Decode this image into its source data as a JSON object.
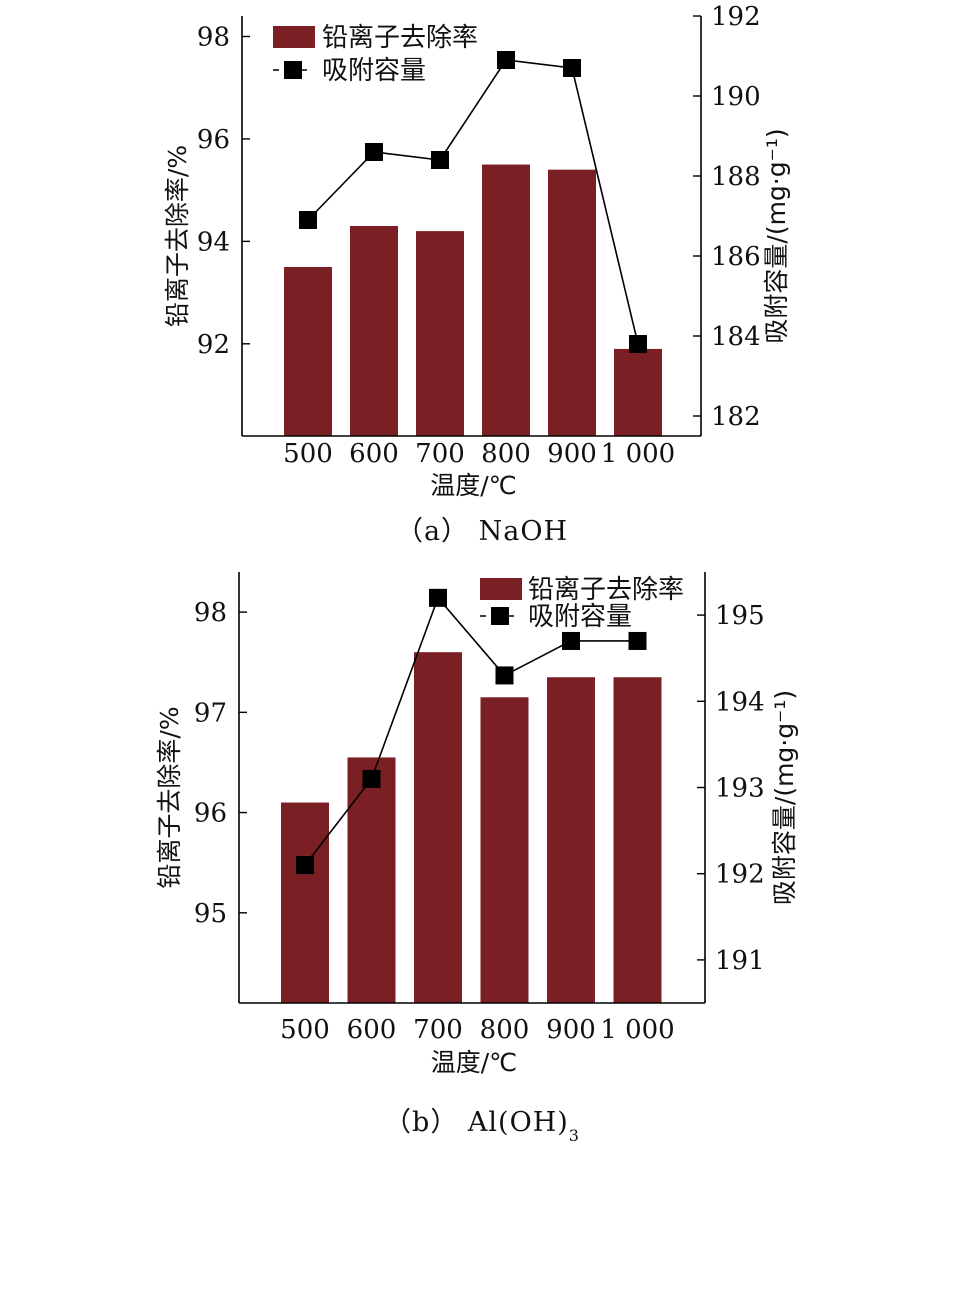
{
  "chart_data": [
    {
      "type": "bar+line",
      "caption": "（a） NaOH",
      "categories": [
        "500",
        "600",
        "700",
        "800",
        "900",
        "1 000"
      ],
      "xlabel": "温度/℃",
      "ylabel": "铅离子去除率/%",
      "ylabel_right": "吸附容量/(mg·g⁻¹)",
      "ylim": [
        90.2,
        98.4
      ],
      "yticks": [
        92,
        94,
        96,
        98
      ],
      "ylim_right": [
        181.5,
        192
      ],
      "yticks_right": [
        182,
        184,
        186,
        188,
        190,
        192
      ],
      "series": [
        {
          "name": "铅离子去除率",
          "kind": "bar",
          "axis": "left",
          "color": "#7a2024",
          "values": [
            93.5,
            94.3,
            94.2,
            95.5,
            95.4,
            91.9
          ]
        },
        {
          "name": "吸附容量",
          "kind": "line",
          "axis": "right",
          "color": "#000000",
          "values": [
            186.9,
            188.6,
            188.4,
            190.9,
            190.7,
            183.8
          ]
        }
      ],
      "legend": "top-left",
      "legend_bar_label": "铅离子去除率",
      "legend_line_label": "吸附容量"
    },
    {
      "type": "bar+line",
      "caption": "（b） Al(OH)",
      "caption_sub": "3",
      "categories": [
        "500",
        "600",
        "700",
        "800",
        "900",
        "1 000"
      ],
      "xlabel": "温度/℃",
      "ylabel": "铅离子去除率/%",
      "ylabel_right": "吸附容量/(mg·g⁻¹)",
      "ylim": [
        94.1,
        98.4
      ],
      "yticks": [
        95,
        96,
        97,
        98
      ],
      "ylim_right": [
        190.5,
        195.5
      ],
      "yticks_right": [
        191,
        192,
        193,
        194,
        195
      ],
      "series": [
        {
          "name": "铅离子去除率",
          "kind": "bar",
          "axis": "left",
          "color": "#7a2024",
          "values": [
            96.1,
            96.55,
            97.6,
            97.15,
            97.35,
            97.35
          ]
        },
        {
          "name": "吸附容量",
          "kind": "line",
          "axis": "right",
          "color": "#000000",
          "values": [
            192.1,
            193.1,
            195.2,
            194.3,
            194.7,
            194.7
          ]
        }
      ],
      "legend": "top-right",
      "legend_bar_label": "铅离子去除率",
      "legend_line_label": "吸附容量"
    }
  ]
}
